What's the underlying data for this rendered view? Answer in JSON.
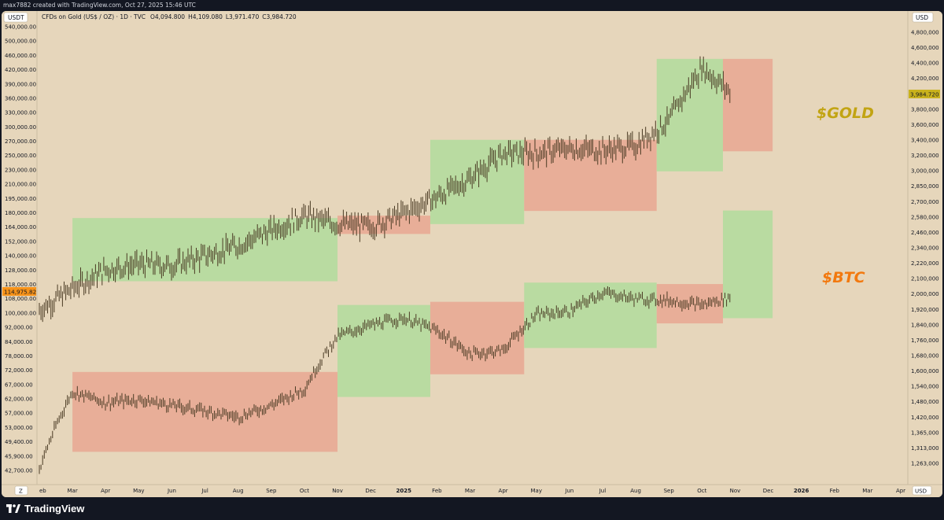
{
  "header": {
    "created_text": "max7882 created with TradingView.com, Oct 27, 2025 15:46 UTC"
  },
  "legend": {
    "symbol": "CFDs on Gold (US$ / OZ) · 1D · TVC",
    "open": "O4,094.800",
    "high": "H4,109.080",
    "low": "L3,971.470",
    "close": "C3,984.720"
  },
  "left_axis": {
    "unit": "USDT",
    "ticks": [
      "540,000.00",
      "500,000.00",
      "460,000.00",
      "420,000.00",
      "390,000.00",
      "360,000.00",
      "330,000.00",
      "300,000.00",
      "270,000.00",
      "250,000.00",
      "230,000.00",
      "210,000.00",
      "195,000.00",
      "180,000.00",
      "164,000.00",
      "152,000.00",
      "140,000.00",
      "128,000.00",
      "118,000.00",
      "108,000.00",
      "100,000.00",
      "92,000.00",
      "84,000.00",
      "78,000.00",
      "72,000.00",
      "67,000.00",
      "62,000.00",
      "57,000.00",
      "53,000.00",
      "49,400.00",
      "45,900.00",
      "42,700.00"
    ],
    "current_value": "114,975.82",
    "current_color": "#f7931a"
  },
  "right_axis": {
    "unit": "USD",
    "ticks": [
      "4,800,000",
      "4,600,000",
      "4,400,000",
      "4,200,000",
      "4,000,000",
      "3,800,000",
      "3,600,000",
      "3,400,000",
      "3,200,000",
      "3,000,000",
      "2,850,000",
      "2,700,000",
      "2,580,000",
      "2,460,000",
      "2,340,000",
      "2,220,000",
      "2,100,000",
      "2,000,000",
      "1,920,000",
      "1,840,000",
      "1,760,000",
      "1,680,000",
      "1,600,000",
      "1,540,000",
      "1,480,000",
      "1,420,000",
      "1,365,000",
      "1,313,000",
      "1,263,000"
    ],
    "current_value": "3,984.720",
    "current_color": "#c9b21d"
  },
  "time_axis": {
    "labels": [
      "eb",
      "Mar",
      "Apr",
      "May",
      "Jun",
      "Jul",
      "Aug",
      "Sep",
      "Oct",
      "Nov",
      "Dec",
      "2025",
      "Feb",
      "Mar",
      "Apr",
      "May",
      "Jun",
      "Jul",
      "Aug",
      "Sep",
      "Oct",
      "Nov",
      "Dec",
      "2026",
      "Feb",
      "Mar",
      "Apr"
    ],
    "scale_btn": "Z",
    "usd_btn": "USD"
  },
  "annotations": {
    "gold_label": "$GOLD",
    "gold_color": "#c2a413",
    "btc_label": "$BTC",
    "btc_color": "#f2790f"
  },
  "colors": {
    "background": "#e6d6bb",
    "zone_green": "#b9dba1",
    "zone_red": "#e8ae98",
    "candle": "#4a3b24"
  },
  "footer": {
    "brand": "TradingView"
  },
  "chart_data": {
    "type": "line",
    "note_scale": "log",
    "xlim": [
      "2024-02",
      "2026-04"
    ],
    "series": [
      {
        "name": "$GOLD",
        "axis": "right",
        "x": [
          "2024-02",
          "2024-03",
          "2024-04",
          "2024-05",
          "2024-06",
          "2024-07",
          "2024-08",
          "2024-09",
          "2024-10",
          "2024-11",
          "2024-12",
          "2025-01",
          "2025-02",
          "2025-03",
          "2025-04",
          "2025-05",
          "2025-06",
          "2025-07",
          "2025-08",
          "2025-09",
          "2025-10",
          "2025-10-27"
        ],
        "values": [
          2030,
          2170,
          2300,
          2340,
          2330,
          2400,
          2480,
          2600,
          2720,
          2650,
          2630,
          2740,
          2880,
          3050,
          3300,
          3300,
          3350,
          3330,
          3380,
          3650,
          4300,
          3984.72
        ]
      },
      {
        "name": "$BTC",
        "axis": "left",
        "x": [
          "2024-02",
          "2024-03",
          "2024-04",
          "2024-05",
          "2024-06",
          "2024-07",
          "2024-08",
          "2024-09",
          "2024-10",
          "2024-11",
          "2024-12",
          "2025-01",
          "2025-02",
          "2025-03",
          "2025-04",
          "2025-05",
          "2025-06",
          "2025-07",
          "2025-08",
          "2025-09",
          "2025-10",
          "2025-10-27"
        ],
        "values": [
          43000,
          67000,
          63000,
          64000,
          62000,
          60000,
          58000,
          62000,
          68000,
          92000,
          98000,
          102000,
          95000,
          83000,
          85000,
          104000,
          106000,
          118000,
          114000,
          113000,
          110000,
          114975.82
        ]
      }
    ],
    "zones": [
      {
        "series": "$GOLD",
        "color": "green",
        "x": [
          "2024-03",
          "2024-11"
        ],
        "y": [
          2220,
          2700
        ]
      },
      {
        "series": "$GOLD",
        "color": "red",
        "x": [
          "2024-11",
          "2025-01-25"
        ],
        "y": [
          2570,
          2720
        ]
      },
      {
        "series": "$GOLD",
        "color": "green",
        "x": [
          "2025-01-25",
          "2025-04-20"
        ],
        "y": [
          2650,
          3440
        ]
      },
      {
        "series": "$GOLD",
        "color": "red",
        "x": [
          "2025-04-20",
          "2025-08-20"
        ],
        "y": [
          2760,
          3440
        ]
      },
      {
        "series": "$GOLD",
        "color": "green",
        "x": [
          "2025-08-20",
          "2025-10-20"
        ],
        "y": [
          3120,
          4420
        ]
      },
      {
        "series": "$GOLD",
        "color": "red",
        "x": [
          "2025-10-20",
          "2025-12-05"
        ],
        "y": [
          3320,
          4420
        ]
      },
      {
        "series": "$BTC",
        "color": "red",
        "x": [
          "2024-03",
          "2024-11"
        ],
        "y": [
          47500,
          75000
        ]
      },
      {
        "series": "$BTC",
        "color": "green",
        "x": [
          "2024-11",
          "2025-01-25"
        ],
        "y": [
          65000,
          110000
        ]
      },
      {
        "series": "$BTC",
        "color": "red",
        "x": [
          "2025-01-25",
          "2025-04-20"
        ],
        "y": [
          74000,
          112000
        ]
      },
      {
        "series": "$BTC",
        "color": "green",
        "x": [
          "2025-04-20",
          "2025-08-20"
        ],
        "y": [
          86000,
          125000
        ]
      },
      {
        "series": "$BTC",
        "color": "red",
        "x": [
          "2025-08-20",
          "2025-10-20"
        ],
        "y": [
          99000,
          124000
        ]
      },
      {
        "series": "$GOLD",
        "color": "green",
        "x": [
          "2025-10-20",
          "2025-12-05"
        ],
        "y": [
          2050,
          2750
        ]
      }
    ]
  }
}
